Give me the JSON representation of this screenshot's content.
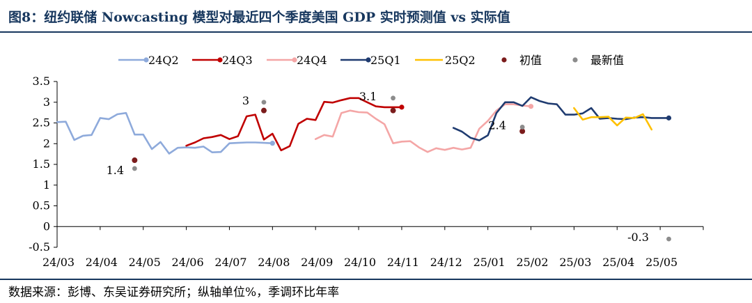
{
  "title": "图8：纽约联储 Nowcasting 模型对最近四个季度美国 GDP 实时预测值 vs 实际值",
  "source": "数据来源：彭博、东吴证券研究所；纵轴单位%，季调环比年率",
  "chart_data": {
    "type": "line",
    "x_ticks": [
      "24/03",
      "24/04",
      "24/05",
      "24/06",
      "24/07",
      "24/08",
      "24/09",
      "24/10",
      "24/11",
      "24/12",
      "25/01",
      "25/02",
      "25/03",
      "25/04",
      "25/05"
    ],
    "y_ticks": [
      "3.5",
      "3",
      "2.5",
      "2",
      "1.5",
      "1",
      "0.5",
      "0",
      "-0.5"
    ],
    "ylim": [
      -0.5,
      3.5
    ],
    "grid": false,
    "legend_position": "top",
    "series": [
      {
        "name": "24Q2",
        "color": "#8eaadb",
        "x": [
          0.0,
          0.2,
          0.4,
          0.6,
          0.8,
          1.0,
          1.2,
          1.4,
          1.6,
          1.8,
          2.0,
          2.2,
          2.4,
          2.6,
          2.8,
          3.0,
          3.2,
          3.4,
          3.6,
          3.8,
          4.0,
          4.2,
          4.4,
          4.6,
          4.8,
          5.0
        ],
        "values": [
          2.52,
          2.53,
          2.09,
          2.19,
          2.21,
          2.62,
          2.59,
          2.71,
          2.74,
          2.22,
          2.22,
          1.87,
          2.04,
          1.76,
          1.9,
          1.91,
          1.9,
          1.93,
          1.79,
          1.8,
          2.01,
          2.02,
          2.03,
          2.03,
          2.02,
          2.01
        ]
      },
      {
        "name": "24Q3",
        "color": "#c00000",
        "x": [
          3.0,
          3.2,
          3.4,
          3.6,
          3.8,
          4.0,
          4.2,
          4.4,
          4.6,
          4.8,
          5.0,
          5.2,
          5.4,
          5.6,
          5.8,
          6.0,
          6.2,
          6.4,
          6.6,
          6.8,
          7.0,
          7.2,
          7.4,
          7.6,
          7.8,
          8.0
        ],
        "values": [
          1.95,
          2.03,
          2.13,
          2.16,
          2.21,
          2.11,
          2.18,
          2.66,
          2.7,
          2.1,
          2.24,
          1.84,
          1.94,
          2.48,
          2.6,
          2.57,
          3.01,
          2.99,
          3.05,
          3.1,
          3.1,
          3.0,
          2.9,
          2.88,
          2.88,
          2.88
        ]
      },
      {
        "name": "24Q4",
        "color": "#f4a6a6",
        "x": [
          6.0,
          6.2,
          6.4,
          6.6,
          6.8,
          7.0,
          7.2,
          7.4,
          7.6,
          7.8,
          8.0,
          8.2,
          8.4,
          8.6,
          8.8,
          9.0,
          9.2,
          9.4,
          9.6,
          9.8,
          10.0,
          10.2,
          10.4,
          10.6,
          10.8,
          11.0
        ],
        "values": [
          2.11,
          2.21,
          2.17,
          2.74,
          2.8,
          2.76,
          2.75,
          2.6,
          2.47,
          2.01,
          2.05,
          2.06,
          1.91,
          1.8,
          1.89,
          1.85,
          1.9,
          1.86,
          1.9,
          2.36,
          2.55,
          2.8,
          2.95,
          2.95,
          2.92,
          2.9
        ]
      },
      {
        "name": "25Q1",
        "color": "#1f3b70",
        "x": [
          9.2,
          9.4,
          9.6,
          9.8,
          10.0,
          10.2,
          10.4,
          10.6,
          10.8,
          11.0,
          11.2,
          11.4,
          11.6,
          11.8,
          12.0,
          12.2,
          12.4,
          12.6,
          12.8,
          13.0,
          13.2,
          13.4,
          13.6,
          13.8,
          14.0,
          14.2
        ],
        "values": [
          2.38,
          2.29,
          2.14,
          2.08,
          2.2,
          2.74,
          3.0,
          3.0,
          2.91,
          3.12,
          3.03,
          2.97,
          2.95,
          2.7,
          2.7,
          2.73,
          2.86,
          2.6,
          2.62,
          2.6,
          2.59,
          2.63,
          2.64,
          2.62,
          2.62,
          2.62
        ]
      },
      {
        "name": "25Q2",
        "color": "#ffc000",
        "x": [
          12.0,
          12.2,
          12.4,
          12.6,
          12.8,
          13.0,
          13.2,
          13.4,
          13.6,
          13.8
        ],
        "values": [
          2.86,
          2.58,
          2.64,
          2.64,
          2.65,
          2.44,
          2.63,
          2.62,
          2.71,
          2.34
        ]
      }
    ],
    "initial_values": {
      "name": "初值",
      "color": "#7b1c1c",
      "points": [
        {
          "x": 1.8,
          "y": 1.6
        },
        {
          "x": 4.8,
          "y": 2.8
        },
        {
          "x": 7.8,
          "y": 2.8
        },
        {
          "x": 10.8,
          "y": 2.3
        }
      ]
    },
    "latest_values": {
      "name": "最新值",
      "color": "#8c8c8c",
      "points": [
        {
          "x": 1.8,
          "y": 1.4
        },
        {
          "x": 4.8,
          "y": 3.0
        },
        {
          "x": 7.8,
          "y": 3.1
        },
        {
          "x": 10.8,
          "y": 2.4
        },
        {
          "x": 14.2,
          "y": -0.3
        }
      ]
    },
    "data_labels": [
      {
        "text": "1.4",
        "x": 1.8,
        "y": 1.4
      },
      {
        "text": "3",
        "x": 4.8,
        "y": 3.0
      },
      {
        "text": "3.1",
        "x": 7.8,
        "y": 3.1
      },
      {
        "text": "2.4",
        "x": 10.8,
        "y": 2.4
      },
      {
        "text": "-0.3",
        "x": 14.2,
        "y": -0.3
      }
    ]
  }
}
